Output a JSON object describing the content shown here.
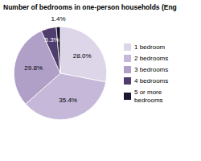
{
  "chart_data": {
    "type": "pie",
    "title": "Number of bedrooms in one-person households (Eng",
    "categories": [
      "1 bedroom",
      "2 bedrooms",
      "3 bedrooms",
      "4 bedrooms",
      "5 or more\nbedrooms"
    ],
    "values": [
      28.0,
      35.4,
      29.8,
      5.3,
      1.4
    ],
    "value_labels": [
      "28.0%",
      "35.4%",
      "29.8%",
      "5.3%",
      "1.4%"
    ],
    "colors": [
      "#ddd5e8",
      "#c5b8d8",
      "#b0a0c8",
      "#4e3d6e",
      "#1e1530"
    ],
    "data_labels": true,
    "legend": "right"
  }
}
